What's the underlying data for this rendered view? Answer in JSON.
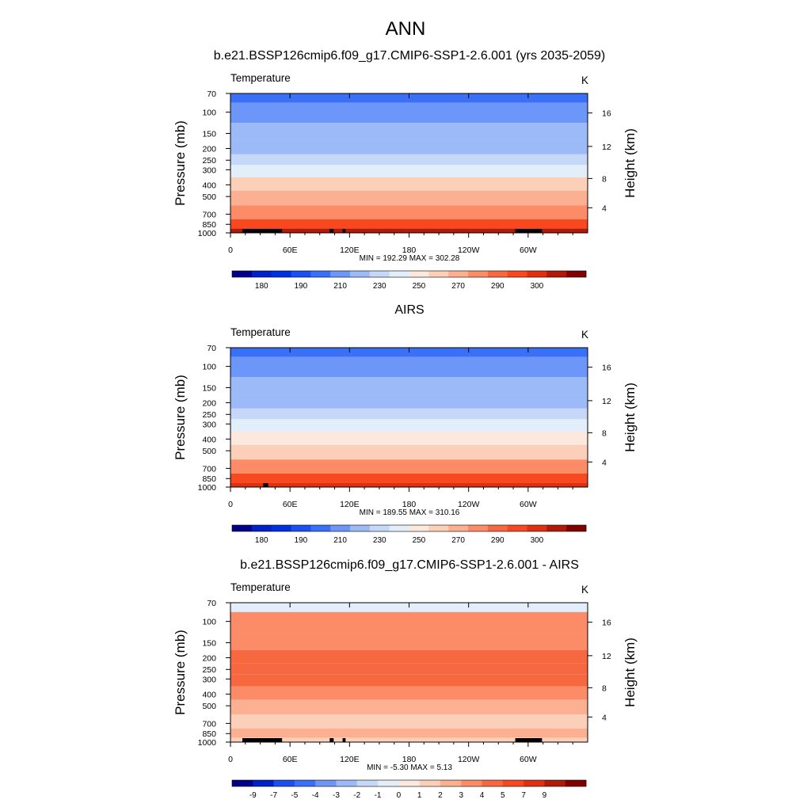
{
  "figure_title": "ANN",
  "chart_data": [
    {
      "type": "heatmap",
      "title": "b.e21.BSSP126cmip6.f09_g17.CMIP6-SSP1-2.6.001 (yrs 2035-2059)",
      "left_label": "Temperature",
      "right_label": "K",
      "ylabel": "Pressure (mb)",
      "ylabel_right": "Height (km)",
      "x_ticks": [
        "0",
        "60E",
        "120E",
        "180",
        "120W",
        "60W"
      ],
      "y_ticks": [
        "70",
        "100",
        "150",
        "200",
        "250",
        "300",
        "400",
        "500",
        "700",
        "850",
        "1000"
      ],
      "y_ticks_right": [
        "16",
        "12",
        "8",
        "4"
      ],
      "min": 192.29,
      "max": 302.28,
      "minmax_text": "MIN = 192.29  MAX = 302.28",
      "colorbar_labels": [
        "180",
        "190",
        "210",
        "230",
        "250",
        "270",
        "290",
        "300"
      ],
      "levels": [
        {
          "p": 70,
          "value": 200
        },
        {
          "p": 100,
          "value": 208
        },
        {
          "p": 150,
          "value": 216
        },
        {
          "p": 200,
          "value": 220
        },
        {
          "p": 250,
          "value": 228
        },
        {
          "p": 300,
          "value": 240
        },
        {
          "p": 400,
          "value": 254
        },
        {
          "p": 500,
          "value": 262
        },
        {
          "p": 700,
          "value": 280
        },
        {
          "p": 850,
          "value": 288
        },
        {
          "p": 1000,
          "value": 296
        }
      ]
    },
    {
      "type": "heatmap",
      "title": "AIRS",
      "left_label": "Temperature",
      "right_label": "K",
      "ylabel": "Pressure (mb)",
      "ylabel_right": "Height (km)",
      "x_ticks": [
        "0",
        "60E",
        "120E",
        "180",
        "120W",
        "60W"
      ],
      "y_ticks": [
        "70",
        "100",
        "150",
        "200",
        "250",
        "300",
        "400",
        "500",
        "700",
        "850",
        "1000"
      ],
      "y_ticks_right": [
        "16",
        "12",
        "8",
        "4"
      ],
      "min": 189.55,
      "max": 310.16,
      "minmax_text": "MIN = 189.55  MAX = 310.16",
      "colorbar_labels": [
        "180",
        "190",
        "210",
        "230",
        "250",
        "270",
        "290",
        "300"
      ],
      "levels": [
        {
          "p": 70,
          "value": 200
        },
        {
          "p": 100,
          "value": 206
        },
        {
          "p": 150,
          "value": 214
        },
        {
          "p": 200,
          "value": 218
        },
        {
          "p": 250,
          "value": 226
        },
        {
          "p": 300,
          "value": 236
        },
        {
          "p": 400,
          "value": 250
        },
        {
          "p": 500,
          "value": 258
        },
        {
          "p": 700,
          "value": 276
        },
        {
          "p": 850,
          "value": 286
        },
        {
          "p": 1000,
          "value": 294
        }
      ]
    },
    {
      "type": "heatmap",
      "title": "b.e21.BSSP126cmip6.f09_g17.CMIP6-SSP1-2.6.001 - AIRS",
      "left_label": "Temperature",
      "right_label": "K",
      "ylabel": "Pressure (mb)",
      "ylabel_right": "Height (km)",
      "x_ticks": [
        "0",
        "60E",
        "120E",
        "180",
        "120W",
        "60W"
      ],
      "y_ticks": [
        "70",
        "100",
        "150",
        "200",
        "250",
        "300",
        "400",
        "500",
        "700",
        "850",
        "1000"
      ],
      "y_ticks_right": [
        "16",
        "12",
        "8",
        "4"
      ],
      "min": -5.3,
      "max": 5.13,
      "minmax_text": "MIN = -5.30  MAX =   5.13",
      "colorbar_labels": [
        "-9",
        "-7",
        "-5",
        "-4",
        "-3",
        "-2",
        "-1",
        "0",
        "1",
        "2",
        "3",
        "4",
        "5",
        "7",
        "9"
      ],
      "levels": [
        {
          "p": 70,
          "value": -1
        },
        {
          "p": 100,
          "value": 3
        },
        {
          "p": 150,
          "value": 3
        },
        {
          "p": 200,
          "value": 4
        },
        {
          "p": 250,
          "value": 4
        },
        {
          "p": 300,
          "value": 4
        },
        {
          "p": 400,
          "value": 3
        },
        {
          "p": 500,
          "value": 2
        },
        {
          "p": 700,
          "value": 1
        },
        {
          "p": 850,
          "value": 2
        },
        {
          "p": 1000,
          "value": 1
        }
      ]
    }
  ],
  "colors": {
    "abs_palette": [
      "#000088",
      "#0020c8",
      "#0030e0",
      "#1a50f0",
      "#3a70f8",
      "#6c96f8",
      "#9cbaf8",
      "#c6d8f8",
      "#e2eefa",
      "#fce8dc",
      "#fcd0b8",
      "#fcb092",
      "#fc8c68",
      "#f86840",
      "#f84820",
      "#e03010",
      "#b01a08",
      "#800000"
    ],
    "diff_palette": [
      "#000088",
      "#0020c8",
      "#1a50f0",
      "#3a70f8",
      "#6c96f8",
      "#9cbaf8",
      "#c6d8f8",
      "#e2eefa",
      "#fce8dc",
      "#fcd0b8",
      "#fcb092",
      "#fc8c68",
      "#f86840",
      "#f84820",
      "#e03010",
      "#b01a08",
      "#800000"
    ],
    "terrain": "#000000"
  }
}
